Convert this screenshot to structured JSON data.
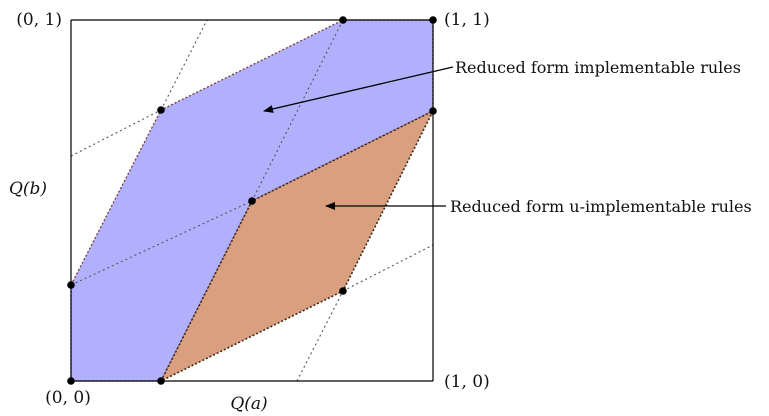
{
  "corners": {
    "origin": "(0, 0)",
    "top_left": "(0, 1)",
    "top_right": "(1, 1)",
    "bottom_right": "(1, 0)"
  },
  "axes": {
    "x_label": "Q(a)",
    "y_label": "Q(b)"
  },
  "regions": {
    "implementable": {
      "label": "Reduced form implementable rules",
      "fill": "#b0b0fc"
    },
    "u_implementable": {
      "label": "Reduced form u-implementable rules",
      "fill": "#d99f7f"
    }
  },
  "colors": {
    "outline": "#7a3a3a",
    "dotted_lines": "#555555",
    "points": "#000000",
    "frame": "#000000"
  }
}
